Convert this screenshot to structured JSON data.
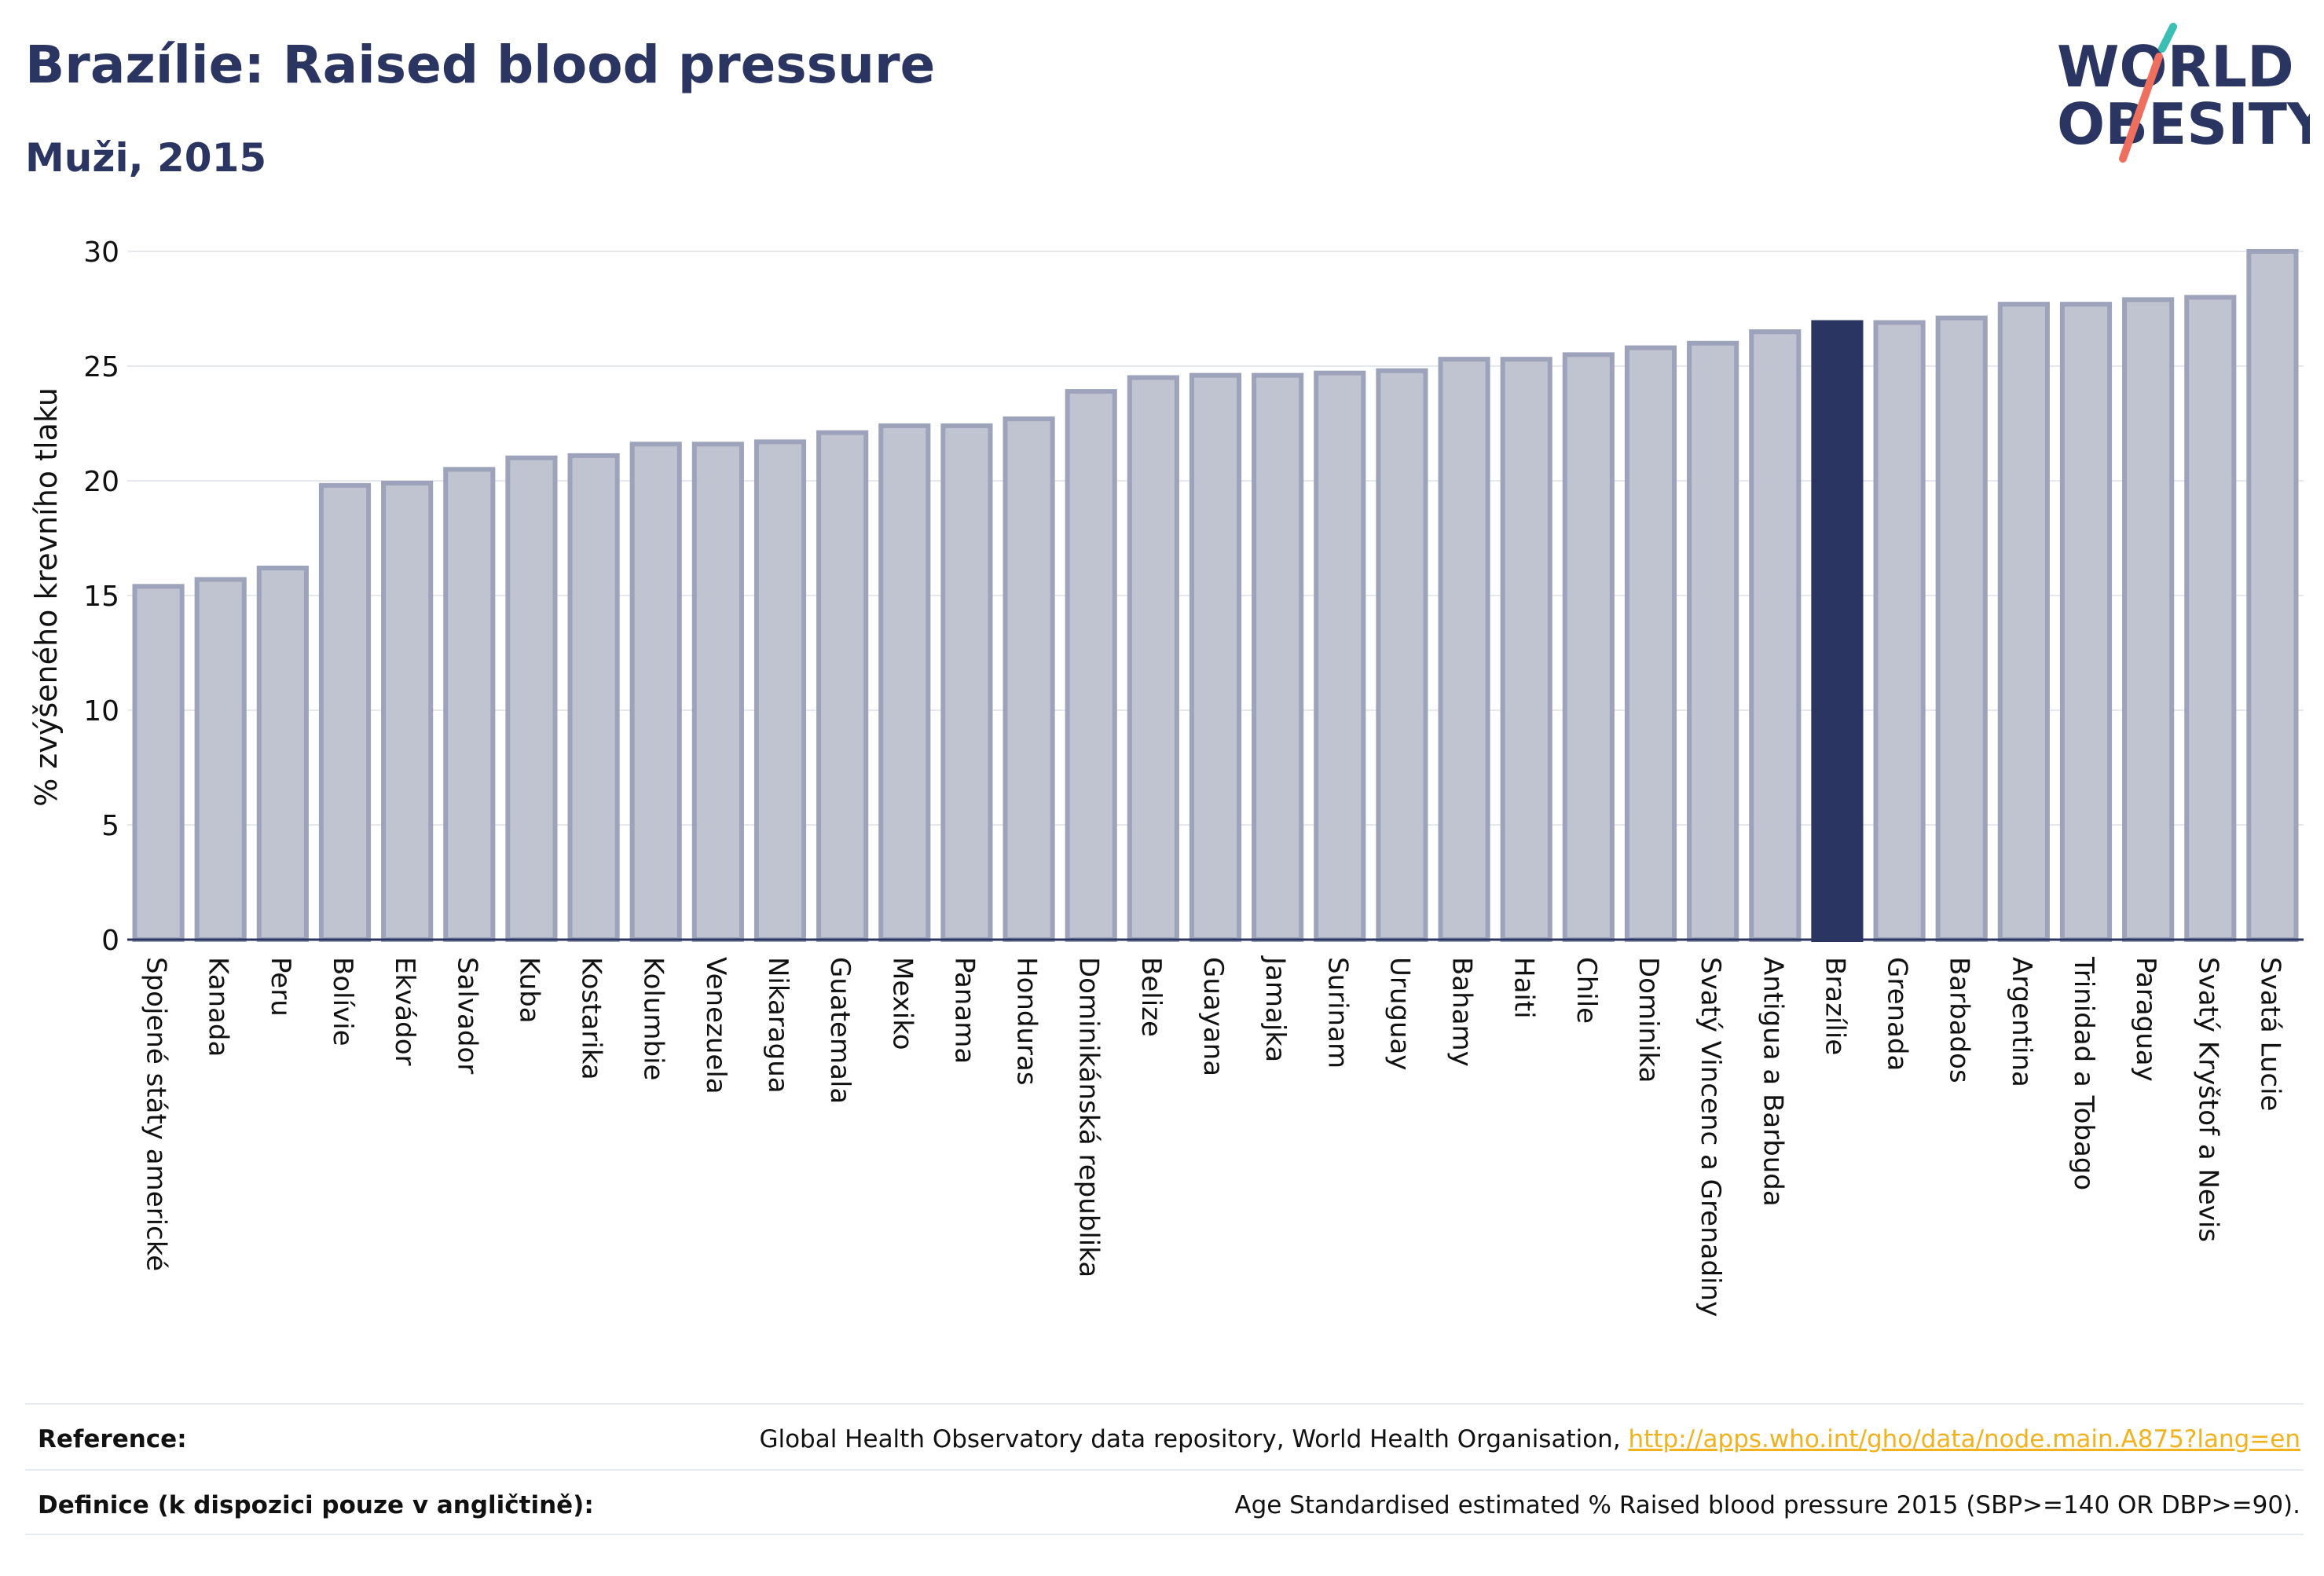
{
  "header": {
    "title": "Brazílie: Raised blood pressure",
    "subtitle": "Muži, 2015"
  },
  "logo": {
    "line1": "WORLD",
    "line2": "OBESITY",
    "colors": {
      "text": "#2b3561",
      "teal": "#3bbfb4",
      "coral": "#ef6f5e"
    }
  },
  "colors": {
    "bar_fill": "#c0c3d0",
    "bar_stroke": "#9da3ba",
    "highlight": "#2b3561",
    "grid": "#e6e8ef",
    "axis": "#2b3561"
  },
  "chart_data": {
    "type": "bar",
    "ylabel": "% zvýšeného krevního tlaku",
    "ylim": [
      0,
      30
    ],
    "yticks": [
      0,
      5,
      10,
      15,
      20,
      25,
      30
    ],
    "grid": true,
    "highlight": "Brazílie",
    "categories": [
      "Spojené státy americké",
      "Kanada",
      "Peru",
      "Bolívie",
      "Ekvádor",
      "Salvador",
      "Kuba",
      "Kostarika",
      "Kolumbie",
      "Venezuela",
      "Nikaragua",
      "Guatemala",
      "Mexiko",
      "Panama",
      "Honduras",
      "Dominikánská republika",
      "Belize",
      "Guayana",
      "Jamajka",
      "Surinam",
      "Uruguay",
      "Bahamy",
      "Haiti",
      "Chile",
      "Dominika",
      "Svatý Vincenc a Grenadiny",
      "Antigua a Barbuda",
      "Brazílie",
      "Grenada",
      "Barbados",
      "Argentina",
      "Trinidad a Tobago",
      "Paraguay",
      "Svatý Kryštof a Nevis",
      "Svatá Lucie"
    ],
    "values": [
      15.4,
      15.7,
      16.2,
      19.8,
      19.9,
      20.5,
      21.0,
      21.1,
      21.6,
      21.6,
      21.7,
      22.1,
      22.4,
      22.4,
      22.7,
      23.9,
      24.5,
      24.6,
      24.6,
      24.7,
      24.8,
      25.3,
      25.3,
      25.5,
      25.8,
      26.0,
      26.5,
      26.9,
      26.9,
      27.1,
      27.7,
      27.7,
      27.9,
      28.0,
      30.0
    ]
  },
  "footer": {
    "reference_label": "Reference:",
    "reference_text": "Global Health Observatory data repository, World Health Organisation, ",
    "reference_link": "http://apps.who.int/gho/data/node.main.A875?lang=en",
    "definition_label": "Definice (k dispozici pouze v angličtině):",
    "definition_text": "Age Standardised estimated % Raised blood pressure 2015 (SBP>=140 OR DBP>=90)."
  }
}
